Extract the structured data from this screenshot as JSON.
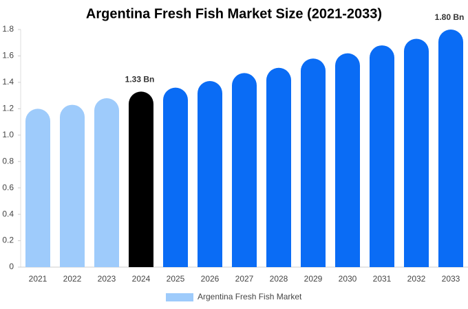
{
  "chart_data": {
    "type": "bar",
    "title": "Argentina Fresh Fish Market Size (2021-2033)",
    "categories": [
      "2021",
      "2022",
      "2023",
      "2024",
      "2025",
      "2026",
      "2027",
      "2028",
      "2029",
      "2030",
      "2031",
      "2032",
      "2033"
    ],
    "series": [
      {
        "name": "Argentina Fresh Fish Market",
        "color": "#9ecbfb",
        "values": [
          1.2,
          1.23,
          1.28,
          1.33,
          1.36,
          1.41,
          1.47,
          1.51,
          1.58,
          1.62,
          1.68,
          1.73,
          1.8
        ],
        "value_labels": [
          null,
          null,
          null,
          "1.33 Bn",
          null,
          null,
          null,
          null,
          null,
          null,
          null,
          null,
          "1.80 Bn"
        ],
        "colors": [
          "#9ecbfb",
          "#9ecbfb",
          "#9ecbfb",
          "#000000",
          "#0a6cf5",
          "#0a6cf5",
          "#0a6cf5",
          "#0a6cf5",
          "#0a6cf5",
          "#0a6cf5",
          "#0a6cf5",
          "#0a6cf5",
          "#0a6cf5"
        ]
      }
    ],
    "ylim": [
      0,
      1.8
    ],
    "yticks": [
      0,
      0.2,
      0.4,
      0.6,
      0.8,
      {
        "value": 1,
        "label": "1.0"
      },
      1.2,
      1.4,
      1.6,
      1.8
    ],
    "grid": false
  }
}
